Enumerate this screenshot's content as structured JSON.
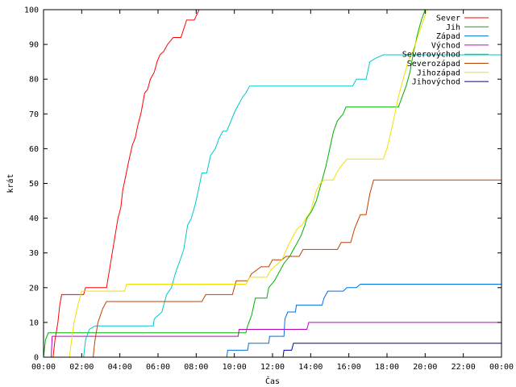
{
  "chart_data": {
    "type": "line",
    "xlabel": "Čas",
    "ylabel": "krát",
    "xlim": [
      0,
      24
    ],
    "ylim": [
      0,
      100
    ],
    "x_ticks": [
      0,
      2,
      4,
      6,
      8,
      10,
      12,
      14,
      16,
      18,
      20,
      22,
      24
    ],
    "x_tick_labels": [
      "00:00",
      "02:00",
      "04:00",
      "06:00",
      "08:00",
      "10:00",
      "12:00",
      "14:00",
      "16:00",
      "18:00",
      "20:00",
      "22:00",
      "00:00"
    ],
    "y_ticks": [
      0,
      10,
      20,
      30,
      40,
      50,
      60,
      70,
      80,
      90,
      100
    ],
    "grid": false,
    "legend_position": "top-right",
    "series": [
      {
        "name": "Sever",
        "color": "#ff0000",
        "points": [
          [
            0.5,
            0
          ],
          [
            0.6,
            5
          ],
          [
            0.75,
            10
          ],
          [
            0.85,
            15
          ],
          [
            0.95,
            18
          ],
          [
            2.1,
            18
          ],
          [
            2.2,
            20
          ],
          [
            3.3,
            20
          ],
          [
            3.45,
            25
          ],
          [
            3.6,
            30
          ],
          [
            3.75,
            35
          ],
          [
            3.9,
            40
          ],
          [
            4.05,
            43
          ],
          [
            4.15,
            48
          ],
          [
            4.3,
            52
          ],
          [
            4.45,
            56
          ],
          [
            4.65,
            61
          ],
          [
            4.8,
            63
          ],
          [
            4.95,
            67
          ],
          [
            5.1,
            70
          ],
          [
            5.2,
            73
          ],
          [
            5.3,
            76
          ],
          [
            5.45,
            77
          ],
          [
            5.6,
            80
          ],
          [
            5.8,
            82
          ],
          [
            5.95,
            85
          ],
          [
            6.1,
            87
          ],
          [
            6.3,
            88
          ],
          [
            6.5,
            90
          ],
          [
            6.8,
            92
          ],
          [
            7.2,
            92
          ],
          [
            7.5,
            97
          ],
          [
            7.9,
            97
          ],
          [
            8.15,
            100
          ]
        ]
      },
      {
        "name": "Jih",
        "color": "#00b000",
        "points": [
          [
            0,
            0
          ],
          [
            0.1,
            5
          ],
          [
            0.25,
            7
          ],
          [
            10.6,
            7
          ],
          [
            10.7,
            9
          ],
          [
            10.9,
            12
          ],
          [
            11.1,
            17
          ],
          [
            11.7,
            17
          ],
          [
            11.8,
            20
          ],
          [
            12.1,
            22
          ],
          [
            12.4,
            25
          ],
          [
            12.6,
            27
          ],
          [
            12.9,
            29
          ],
          [
            13.1,
            31
          ],
          [
            13.3,
            33
          ],
          [
            13.5,
            35
          ],
          [
            13.7,
            38
          ],
          [
            13.8,
            40
          ],
          [
            14.05,
            42
          ],
          [
            14.3,
            45
          ],
          [
            14.55,
            50
          ],
          [
            14.8,
            55
          ],
          [
            15.0,
            60
          ],
          [
            15.2,
            65
          ],
          [
            15.4,
            68
          ],
          [
            15.7,
            70
          ],
          [
            15.85,
            72
          ],
          [
            18.6,
            72
          ],
          [
            18.8,
            75
          ],
          [
            19.0,
            78
          ],
          [
            19.2,
            82
          ],
          [
            19.4,
            88
          ],
          [
            19.6,
            93
          ],
          [
            19.8,
            97
          ],
          [
            20.0,
            100
          ]
        ]
      },
      {
        "name": "Západ",
        "color": "#0070e0",
        "points": [
          [
            9.6,
            0
          ],
          [
            9.65,
            2
          ],
          [
            10.7,
            2
          ],
          [
            10.75,
            4
          ],
          [
            11.8,
            4
          ],
          [
            11.85,
            6
          ],
          [
            12.6,
            6
          ],
          [
            12.65,
            11
          ],
          [
            12.8,
            13
          ],
          [
            13.2,
            13
          ],
          [
            13.25,
            15
          ],
          [
            14.6,
            15
          ],
          [
            14.7,
            17
          ],
          [
            14.9,
            19
          ],
          [
            15.7,
            19
          ],
          [
            15.9,
            20
          ],
          [
            16.4,
            20
          ],
          [
            16.6,
            21
          ],
          [
            24,
            21
          ]
        ]
      },
      {
        "name": "Východ",
        "color": "#c000c0",
        "points": [
          [
            0.4,
            0
          ],
          [
            0.45,
            6
          ],
          [
            10.2,
            6
          ],
          [
            10.25,
            8
          ],
          [
            13.8,
            8
          ],
          [
            13.9,
            10
          ],
          [
            24,
            10
          ]
        ]
      },
      {
        "name": "Severovýchod",
        "color": "#00c8c8",
        "points": [
          [
            2.1,
            0
          ],
          [
            2.2,
            5
          ],
          [
            2.4,
            8
          ],
          [
            2.7,
            9
          ],
          [
            5.75,
            9
          ],
          [
            5.8,
            11
          ],
          [
            6.2,
            13
          ],
          [
            6.45,
            18
          ],
          [
            6.7,
            20
          ],
          [
            6.9,
            24
          ],
          [
            7.1,
            27
          ],
          [
            7.35,
            31
          ],
          [
            7.55,
            38
          ],
          [
            7.75,
            40
          ],
          [
            7.95,
            44
          ],
          [
            8.15,
            49
          ],
          [
            8.3,
            53
          ],
          [
            8.55,
            53
          ],
          [
            8.75,
            58
          ],
          [
            9.0,
            60
          ],
          [
            9.2,
            63
          ],
          [
            9.4,
            65
          ],
          [
            9.6,
            65
          ],
          [
            9.75,
            67
          ],
          [
            9.9,
            69
          ],
          [
            10.05,
            71
          ],
          [
            10.25,
            73
          ],
          [
            10.45,
            75
          ],
          [
            10.6,
            76
          ],
          [
            10.8,
            78
          ],
          [
            16.2,
            78
          ],
          [
            16.4,
            80
          ],
          [
            16.9,
            80
          ],
          [
            17.1,
            85
          ],
          [
            17.4,
            86
          ],
          [
            17.8,
            87
          ],
          [
            24,
            87
          ]
        ]
      },
      {
        "name": "Severozápad",
        "color": "#c04000",
        "points": [
          [
            2.6,
            0
          ],
          [
            2.7,
            5
          ],
          [
            2.85,
            10
          ],
          [
            3.1,
            14
          ],
          [
            3.3,
            16
          ],
          [
            8.3,
            16
          ],
          [
            8.5,
            18
          ],
          [
            9.9,
            18
          ],
          [
            10.1,
            22
          ],
          [
            10.7,
            22
          ],
          [
            10.9,
            24
          ],
          [
            11.4,
            26
          ],
          [
            11.8,
            26
          ],
          [
            12.0,
            28
          ],
          [
            12.5,
            28
          ],
          [
            12.7,
            29
          ],
          [
            13.4,
            29
          ],
          [
            13.6,
            31
          ],
          [
            15.4,
            31
          ],
          [
            15.6,
            33
          ],
          [
            16.1,
            33
          ],
          [
            16.3,
            37
          ],
          [
            16.6,
            41
          ],
          [
            16.9,
            41
          ],
          [
            17.1,
            47
          ],
          [
            17.3,
            51
          ],
          [
            24,
            51
          ]
        ]
      },
      {
        "name": "Jihozápad",
        "color": "#f0e000",
        "points": [
          [
            1.35,
            0
          ],
          [
            1.45,
            4
          ],
          [
            1.6,
            10
          ],
          [
            1.8,
            15
          ],
          [
            2.0,
            19
          ],
          [
            4.25,
            19
          ],
          [
            4.35,
            21
          ],
          [
            10.6,
            21
          ],
          [
            10.8,
            23
          ],
          [
            11.7,
            23
          ],
          [
            11.9,
            25
          ],
          [
            12.3,
            27
          ],
          [
            12.5,
            28
          ],
          [
            12.65,
            30
          ],
          [
            12.9,
            33
          ],
          [
            13.1,
            35
          ],
          [
            13.3,
            37
          ],
          [
            13.55,
            38
          ],
          [
            13.75,
            40
          ],
          [
            14.0,
            42
          ],
          [
            14.15,
            45
          ],
          [
            14.3,
            48
          ],
          [
            14.5,
            50
          ],
          [
            14.7,
            51
          ],
          [
            15.2,
            51
          ],
          [
            15.35,
            53
          ],
          [
            15.6,
            55
          ],
          [
            15.9,
            57
          ],
          [
            17.8,
            57
          ],
          [
            18.0,
            60
          ],
          [
            18.3,
            67
          ],
          [
            18.6,
            75
          ],
          [
            18.85,
            80
          ],
          [
            19.1,
            85
          ],
          [
            19.35,
            88
          ],
          [
            19.6,
            92
          ],
          [
            19.85,
            96
          ],
          [
            20.1,
            100
          ]
        ]
      },
      {
        "name": "Jihovýchod",
        "color": "#0000a0",
        "points": [
          [
            12.55,
            0
          ],
          [
            12.6,
            2
          ],
          [
            13.0,
            2
          ],
          [
            13.1,
            4
          ],
          [
            24,
            4
          ]
        ]
      }
    ]
  }
}
